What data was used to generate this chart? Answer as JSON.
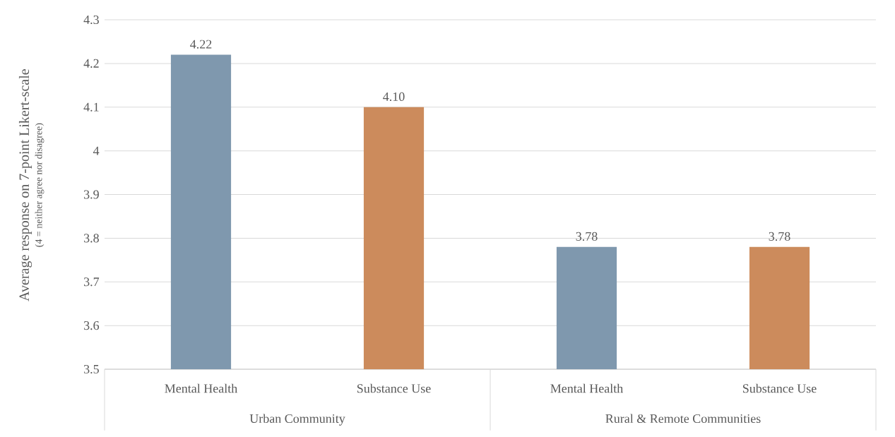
{
  "chart_data": {
    "type": "bar",
    "ylabel": "Average response on 7-point Likert-scale",
    "annotations": [
      "(4 = neither agree nor disagree)"
    ],
    "categories": [
      "Urban Community",
      "Rural & Remote Communities"
    ],
    "series": [
      {
        "name": "Mental Health",
        "color": "#7f98ae",
        "values": [
          4.22,
          3.78
        ],
        "value_labels": [
          "4.22",
          "3.78"
        ]
      },
      {
        "name": "Substance Use",
        "color": "#cc8b5c",
        "values": [
          4.1,
          3.78
        ],
        "value_labels": [
          "4.10",
          "3.78"
        ]
      }
    ],
    "ylim": [
      3.5,
      4.3
    ],
    "yticks": [
      3.5,
      3.6,
      3.7,
      3.8,
      3.9,
      4,
      4.1,
      4.2,
      4.3
    ],
    "grid": "y",
    "legend": false
  }
}
